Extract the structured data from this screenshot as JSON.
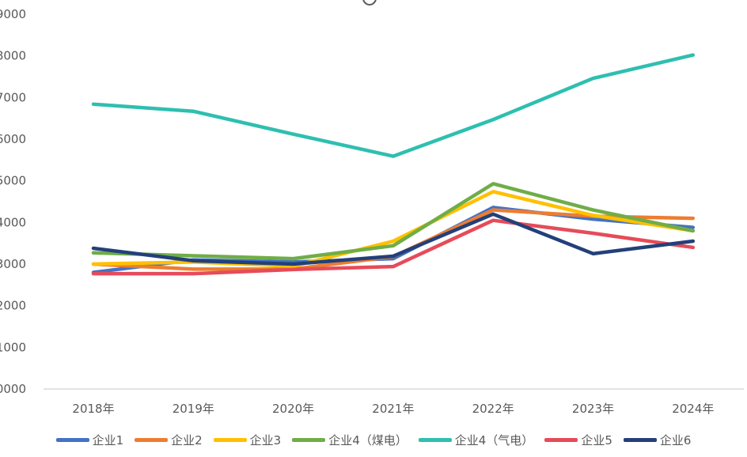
{
  "chart_data": {
    "type": "line",
    "categories": [
      "2018年",
      "2019年",
      "2020年",
      "2021年",
      "2022年",
      "2023年",
      "2024年"
    ],
    "y_tick_labels": [
      "0000",
      "1000",
      "2000",
      "3000",
      "4000",
      "5000",
      "6000",
      "7000",
      "8000",
      "9000"
    ],
    "ylim": [
      0,
      9000
    ],
    "y_step": 1000,
    "grid": false,
    "legend_position": "bottom",
    "series": [
      {
        "name": "企业1",
        "color": "#4472C4",
        "values": [
          2800,
          3100,
          3050,
          3130,
          4360,
          4080,
          3880
        ]
      },
      {
        "name": "企业2",
        "color": "#ED7D31",
        "values": [
          3000,
          2880,
          2880,
          3180,
          4300,
          4150,
          4100
        ]
      },
      {
        "name": "企业3",
        "color": "#FFC000",
        "values": [
          3000,
          3050,
          2950,
          3550,
          4740,
          4170,
          3800
        ]
      },
      {
        "name": "企业4（煤电）",
        "color": "#70AD47",
        "values": [
          3270,
          3200,
          3130,
          3440,
          4930,
          4300,
          3800
        ]
      },
      {
        "name": "企业4（气电）",
        "color": "#2EBFB0",
        "values": [
          6840,
          6670,
          6120,
          5590,
          6470,
          7460,
          8020
        ]
      },
      {
        "name": "企业5",
        "color": "#E64B5A",
        "values": [
          2770,
          2770,
          2870,
          2940,
          4050,
          3740,
          3400
        ]
      },
      {
        "name": "企业6",
        "color": "#23407A",
        "values": [
          3380,
          3080,
          3000,
          3190,
          4200,
          3250,
          3550
        ]
      }
    ]
  }
}
